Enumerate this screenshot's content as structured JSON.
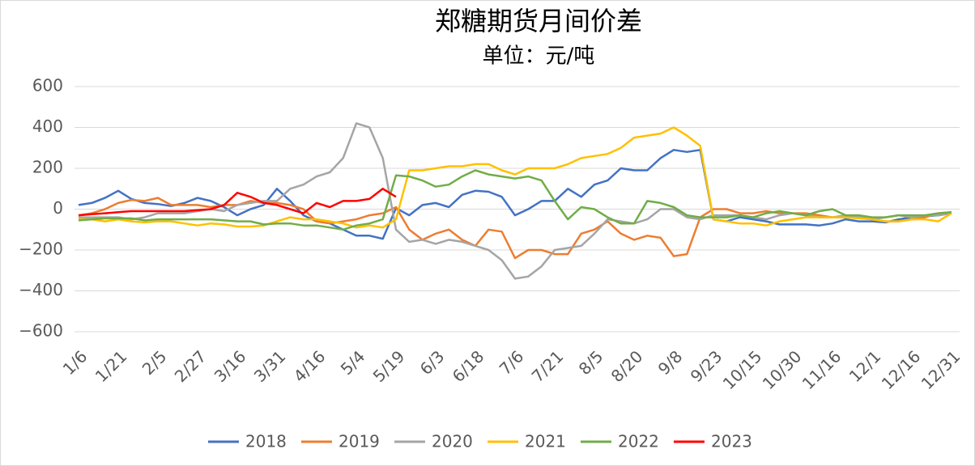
{
  "chart_data": {
    "type": "line",
    "title": "郑糖期货月间价差",
    "subtitle": "单位：元/吨",
    "categories": [
      "1/6",
      null,
      null,
      "1/21",
      null,
      null,
      "2/5",
      null,
      null,
      "2/27",
      null,
      null,
      "3/16",
      null,
      null,
      "3/31",
      null,
      null,
      "4/16",
      null,
      null,
      "5/4",
      null,
      null,
      "5/19",
      null,
      null,
      "6/3",
      null,
      null,
      "6/18",
      null,
      null,
      "7/6",
      null,
      null,
      "7/21",
      null,
      null,
      "8/5",
      null,
      null,
      "8/20",
      null,
      null,
      "9/8",
      null,
      null,
      "9/23",
      null,
      null,
      "10/15",
      null,
      null,
      "10/30",
      null,
      null,
      "11/16",
      null,
      null,
      "12/1",
      null,
      null,
      "12/16",
      null,
      null,
      "12/31"
    ],
    "ylim": [
      -600,
      600
    ],
    "yticks": [
      {
        "value": -600,
        "label": "−600"
      },
      {
        "value": -400,
        "label": "−400"
      },
      {
        "value": -200,
        "label": "−200"
      },
      0,
      200,
      400,
      600
    ],
    "grid": true,
    "legend": "bottom",
    "series": [
      {
        "name": "2018",
        "color": "#4472c4",
        "values": [
          20,
          30,
          55,
          90,
          50,
          30,
          25,
          15,
          30,
          55,
          40,
          10,
          -30,
          0,
          20,
          100,
          40,
          -30,
          -60,
          -70,
          -100,
          -130,
          -130,
          -145,
          5,
          -30,
          20,
          30,
          10,
          70,
          90,
          85,
          60,
          -30,
          0,
          40,
          40,
          100,
          60,
          120,
          140,
          200,
          190,
          190,
          250,
          290,
          280,
          290,
          -50,
          -60,
          -40,
          -50,
          -60,
          -75,
          -75,
          -75,
          -80,
          -70,
          -50,
          -60,
          -60,
          -65,
          -50,
          -40,
          -35,
          -30,
          -20
        ]
      },
      {
        "name": "2019",
        "color": "#ed7d31",
        "values": [
          -30,
          -20,
          0,
          30,
          45,
          40,
          55,
          20,
          20,
          20,
          10,
          20,
          20,
          40,
          30,
          30,
          20,
          0,
          -60,
          -70,
          -60,
          -50,
          -30,
          -20,
          10,
          -100,
          -150,
          -120,
          -100,
          -150,
          -180,
          -100,
          -110,
          -240,
          -200,
          -200,
          -220,
          -220,
          -120,
          -100,
          -60,
          -120,
          -150,
          -130,
          -140,
          -230,
          -220,
          -40,
          0,
          0,
          -20,
          -20,
          -10,
          -20,
          -20,
          -20,
          -30,
          -40,
          -40,
          -40,
          -50,
          -60,
          -60,
          -50,
          -40,
          -20,
          -15
        ]
      },
      {
        "name": "2020",
        "color": "#a5a5a5",
        "values": [
          -40,
          -40,
          -40,
          -40,
          -50,
          -40,
          -20,
          -20,
          -20,
          -10,
          0,
          -10,
          20,
          30,
          40,
          40,
          100,
          120,
          160,
          180,
          250,
          420,
          400,
          250,
          -100,
          -160,
          -150,
          -170,
          -150,
          -160,
          -180,
          -200,
          -250,
          -340,
          -330,
          -280,
          -200,
          -190,
          -180,
          -120,
          -50,
          -60,
          -70,
          -50,
          0,
          0,
          -40,
          -50,
          -30,
          -30,
          -30,
          -40,
          -50,
          -30,
          -20,
          -30,
          -40,
          -40,
          -30,
          -40,
          -50,
          -40,
          -30,
          -40,
          -30,
          -30,
          -20
        ]
      },
      {
        "name": "2021",
        "color": "#ffc000",
        "values": [
          -50,
          -50,
          -60,
          -50,
          -60,
          -65,
          -60,
          -60,
          -70,
          -80,
          -70,
          -75,
          -85,
          -85,
          -80,
          -60,
          -40,
          -50,
          -50,
          -60,
          -70,
          -90,
          -80,
          -90,
          -50,
          190,
          190,
          200,
          210,
          210,
          220,
          220,
          190,
          170,
          200,
          200,
          200,
          220,
          250,
          260,
          270,
          300,
          350,
          360,
          370,
          400,
          360,
          310,
          -50,
          -60,
          -70,
          -70,
          -80,
          -60,
          -50,
          -40,
          -40,
          -40,
          -40,
          -45,
          -50,
          -60,
          -60,
          -50,
          -50,
          -60,
          -20
        ]
      },
      {
        "name": "2022",
        "color": "#70ad47",
        "values": [
          -55,
          -50,
          -45,
          -45,
          -45,
          -55,
          -50,
          -50,
          -50,
          -50,
          -50,
          -55,
          -60,
          -60,
          -75,
          -70,
          -70,
          -80,
          -80,
          -90,
          -100,
          -80,
          -70,
          -50,
          165,
          160,
          140,
          110,
          120,
          160,
          190,
          170,
          160,
          150,
          160,
          140,
          40,
          -50,
          10,
          0,
          -40,
          -70,
          -70,
          40,
          30,
          10,
          -30,
          -40,
          -40,
          -40,
          -30,
          -40,
          -20,
          -10,
          -20,
          -30,
          -10,
          0,
          -30,
          -30,
          -40,
          -40,
          -30,
          -30,
          -30,
          -20,
          -15
        ]
      },
      {
        "name": "2023",
        "color": "#ff0000",
        "values": [
          -30,
          -25,
          -20,
          -15,
          -10,
          -10,
          -10,
          -10,
          -10,
          -5,
          0,
          20,
          80,
          60,
          30,
          20,
          0,
          -20,
          30,
          10,
          40,
          40,
          50,
          100,
          60,
          null,
          null,
          null,
          null,
          null,
          null,
          null,
          null,
          null,
          null,
          null,
          null,
          null,
          null,
          null,
          null,
          null,
          null,
          null,
          null,
          null,
          null,
          null,
          null,
          null,
          null,
          null,
          null,
          null,
          null,
          null,
          null,
          null,
          null,
          null,
          null,
          null,
          null,
          null,
          null,
          null,
          null
        ]
      }
    ]
  }
}
